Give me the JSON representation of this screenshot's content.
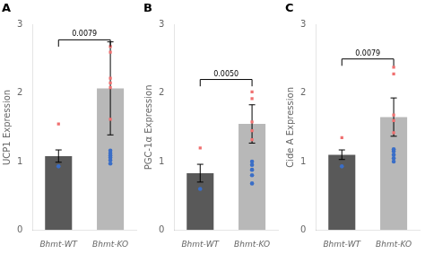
{
  "chart_data": [
    {
      "type": "bar",
      "title": "A",
      "ylabel": "UCP1 Expression",
      "categories": [
        "Bhmt-WT",
        "Bhmt-KO"
      ],
      "values": [
        1.08,
        2.07
      ],
      "errors": [
        0.09,
        0.68
      ],
      "colors": [
        "#595959",
        "#b8b8b8"
      ],
      "dots": [
        {
          "color": "#3a6ec7",
          "marker": "circle",
          "values": [
            0.93,
            0.97,
            1.02,
            1.06,
            1.09,
            1.12,
            1.16
          ]
        },
        {
          "color": "#f07070",
          "marker": "square",
          "values": [
            1.55,
            1.62,
            2.08,
            2.15,
            2.22,
            2.6,
            2.68
          ]
        }
      ],
      "bracket": {
        "y": 2.78,
        "drop": 0.1,
        "text": "0.0079"
      },
      "ylim": [
        0,
        3.0
      ],
      "yticks": [
        0,
        1,
        2,
        3
      ],
      "grid": false
    },
    {
      "type": "bar",
      "title": "B",
      "ylabel": "PGC-1α Expression",
      "categories": [
        "Bhmt-WT",
        "Bhmt-KO"
      ],
      "values": [
        0.83,
        1.55
      ],
      "errors": [
        0.13,
        0.28
      ],
      "colors": [
        "#595959",
        "#b8b8b8"
      ],
      "dots": [
        {
          "color": "#3a6ec7",
          "marker": "circle",
          "values": [
            0.6,
            0.68,
            0.8,
            0.88,
            0.95,
            1.0
          ]
        },
        {
          "color": "#f07070",
          "marker": "square",
          "values": [
            1.2,
            1.32,
            1.45,
            1.58,
            1.92,
            2.02
          ]
        }
      ],
      "bracket": {
        "y": 2.2,
        "drop": 0.1,
        "text": "0.0050"
      },
      "ylim": [
        0,
        3.0
      ],
      "yticks": [
        0,
        1,
        2,
        3
      ],
      "grid": false
    },
    {
      "type": "bar",
      "title": "C",
      "ylabel": "Cide A Expression",
      "categories": [
        "Bhmt-WT",
        "Bhmt-KO"
      ],
      "values": [
        1.1,
        1.65
      ],
      "errors": [
        0.07,
        0.28
      ],
      "colors": [
        "#595959",
        "#b8b8b8"
      ],
      "dots": [
        {
          "color": "#3a6ec7",
          "marker": "circle",
          "values": [
            0.93,
            1.0,
            1.05,
            1.1,
            1.15,
            1.18
          ]
        },
        {
          "color": "#f07070",
          "marker": "square",
          "values": [
            1.35,
            1.42,
            1.6,
            1.68,
            2.28,
            2.38
          ]
        }
      ],
      "bracket": {
        "y": 2.5,
        "drop": 0.1,
        "text": "0.0079"
      },
      "ylim": [
        0,
        3.0
      ],
      "yticks": [
        0,
        1,
        2,
        3
      ],
      "grid": false
    }
  ]
}
